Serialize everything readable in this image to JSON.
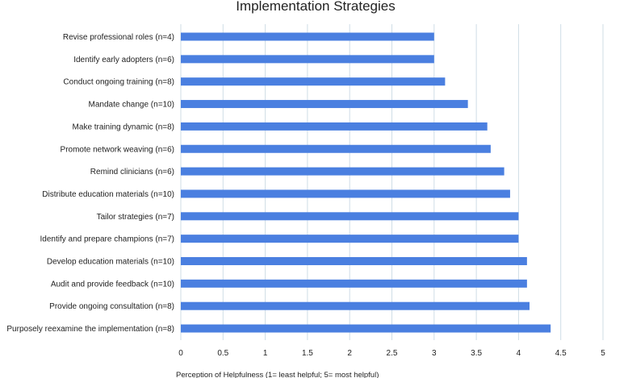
{
  "chart_data": {
    "type": "bar",
    "orientation": "horizontal",
    "title": "Implementation Strategies",
    "xlabel": "Perception of Helpfulness (1= least helpful; 5= most helpful)",
    "ylabel": "",
    "xlim": [
      0,
      5
    ],
    "xticks": [
      "0",
      "0.5",
      "1",
      "1.5",
      "2",
      "2.5",
      "3",
      "3.5",
      "4",
      "4.5",
      "5"
    ],
    "grid": "vertical",
    "bar_color": "#4a7fe0",
    "categories": [
      "Revise professional roles (n=4)",
      "Identify early adopters (n=6)",
      "Conduct ongoing training (n=8)",
      "Mandate change (n=10)",
      "Make training dynamic (n=8)",
      "Promote network weaving (n=6)",
      "Remind clinicians (n=6)",
      "Distribute education materials (n=10)",
      "Tailor strategies (n=7)",
      "Identify and prepare champions (n=7)",
      "Develop education materials (n=10)",
      "Audit and provide feedback (n=10)",
      "Provide ongoing consultation (n=8)",
      "Purposely reexamine the implementation (n=8)"
    ],
    "values": [
      3.0,
      3.0,
      3.13,
      3.4,
      3.63,
      3.67,
      3.83,
      3.9,
      4.0,
      4.0,
      4.1,
      4.1,
      4.13,
      4.38
    ]
  }
}
